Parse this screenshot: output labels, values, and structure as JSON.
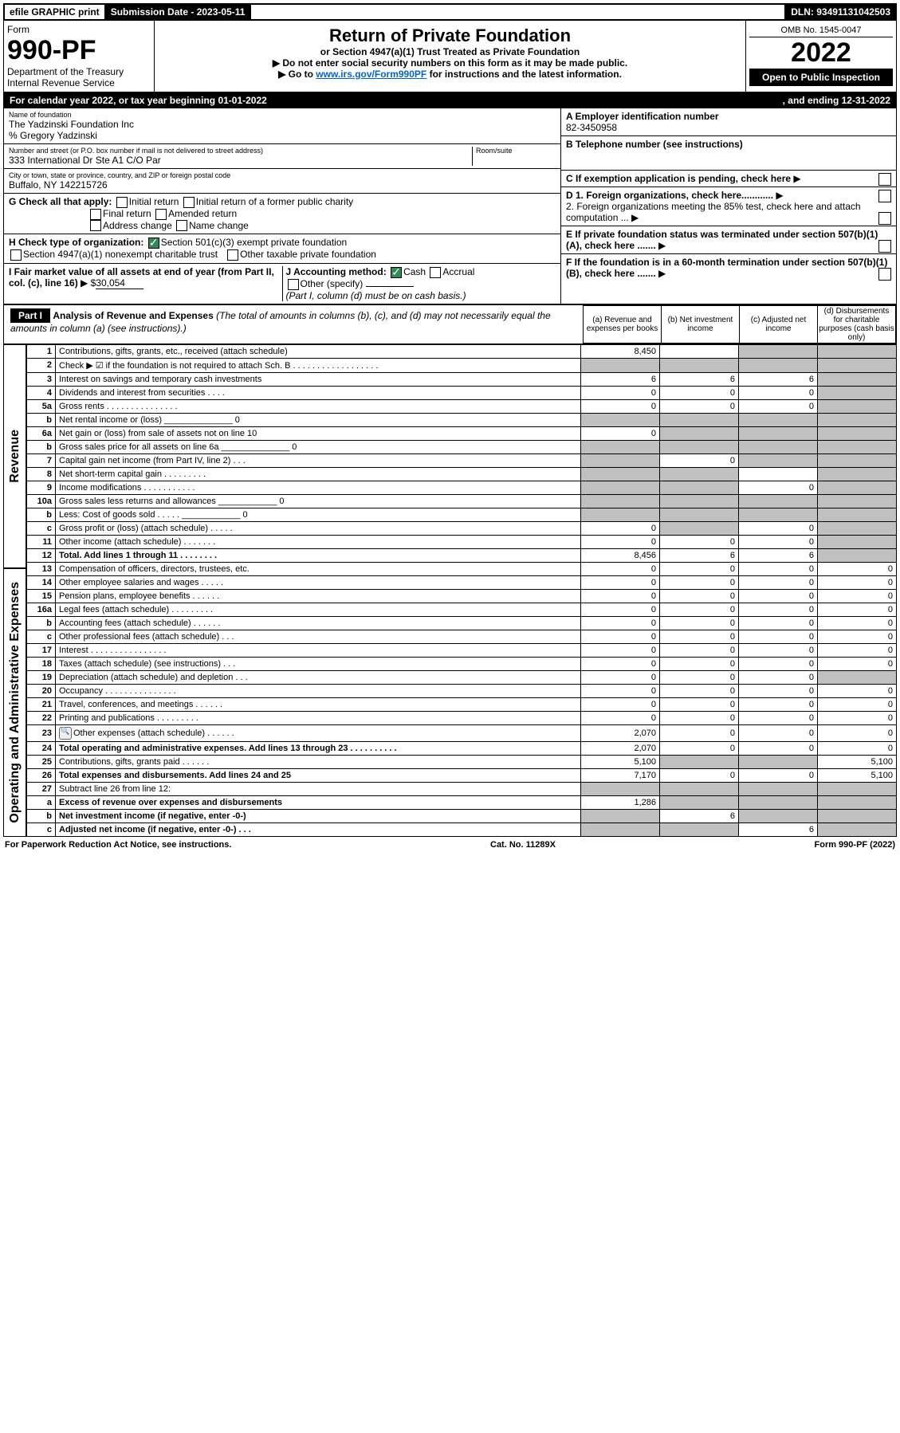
{
  "top_bar": {
    "efile": "efile GRAPHIC print",
    "subdate_label": "Submission Date - 2023-05-11",
    "dln": "DLN: 93491131042503"
  },
  "header": {
    "form_label": "Form",
    "form_no": "990-PF",
    "dept": "Department of the Treasury",
    "irs": "Internal Revenue Service",
    "title": "Return of Private Foundation",
    "subtitle": "or Section 4947(a)(1) Trust Treated as Private Foundation",
    "note1": "Do not enter social security numbers on this form as it may be made public.",
    "note2": "Go to ",
    "link": "www.irs.gov/Form990PF",
    "note2_after": " for instructions and the latest information.",
    "omb": "OMB No. 1545-0047",
    "year": "2022",
    "inspect": "Open to Public Inspection"
  },
  "cal": "For calendar year 2022, or tax year beginning 01-01-2022",
  "ending": ", and ending 12-31-2022",
  "name_label": "Name of foundation",
  "name": "The Yadzinski Foundation Inc",
  "name2": "% Gregory Yadzinski",
  "addr_label": "Number and street (or P.O. box number if mail is not delivered to street address)",
  "addr": "333 International Dr Ste A1 C/O Par",
  "room_label": "Room/suite",
  "city_label": "City or town, state or province, country, and ZIP or foreign postal code",
  "city": "Buffalo, NY 142215726",
  "A_label": "A Employer identification number",
  "A_val": "82-3450958",
  "B_label": "B Telephone number (see instructions)",
  "C_label": "C If exemption application is pending, check here",
  "D1": "D 1. Foreign organizations, check here............",
  "D2": "2. Foreign organizations meeting the 85% test, check here and attach computation ...",
  "E": "E If private foundation status was terminated under section 507(b)(1)(A), check here .......",
  "F": "F If the foundation is in a 60-month termination under section 507(b)(1)(B), check here .......",
  "G_label": "G Check all that apply:",
  "G_opts": [
    "Initial return",
    "Initial return of a former public charity",
    "Final return",
    "Amended return",
    "Address change",
    "Name change"
  ],
  "H_label": "H Check type of organization:",
  "H_opt1": "Section 501(c)(3) exempt private foundation",
  "H_opt2": "Section 4947(a)(1) nonexempt charitable trust",
  "H_opt3": "Other taxable private foundation",
  "I_label": "I Fair market value of all assets at end of year (from Part II, col. (c), line 16) ",
  "I_pref": "▶ $",
  "I_val": "30,054",
  "J_label": "J Accounting method:",
  "J_cash": "Cash",
  "J_accrual": "Accrual",
  "J_other": "Other (specify)",
  "J_note": "(Part I, column (d) must be on cash basis.)",
  "part1": {
    "label": "Part I",
    "title": "Analysis of Revenue and Expenses",
    "sub": "(The total of amounts in columns (b), (c), and (d) may not necessarily equal the amounts in column (a) (see instructions).)",
    "col_a": "(a) Revenue and expenses per books",
    "col_b": "(b) Net investment income",
    "col_c": "(c) Adjusted net income",
    "col_d": "(d) Disbursements for charitable purposes (cash basis only)"
  },
  "rot1": "Revenue",
  "rot2": "Operating and Administrative Expenses",
  "rows": [
    {
      "n": "1",
      "l": "Contributions, gifts, grants, etc., received (attach schedule)",
      "a": "8,450",
      "b": "",
      "c": "",
      "d": "",
      "g": [
        "",
        "",
        "g",
        "g"
      ]
    },
    {
      "n": "2",
      "l": "Check ▶ ☑ if the foundation is not required to attach Sch. B  . . . . . . . . . . . . . . . . . .",
      "a": "",
      "b": "",
      "c": "",
      "d": "",
      "g": [
        "g",
        "g",
        "g",
        "g"
      ]
    },
    {
      "n": "3",
      "l": "Interest on savings and temporary cash investments",
      "a": "6",
      "b": "6",
      "c": "6",
      "d": "",
      "g": [
        "",
        "",
        "",
        "g"
      ]
    },
    {
      "n": "4",
      "l": "Dividends and interest from securities . . . .",
      "a": "0",
      "b": "0",
      "c": "0",
      "d": "",
      "g": [
        "",
        "",
        "",
        "g"
      ]
    },
    {
      "n": "5a",
      "l": "Gross rents  . . . . . . . . . . . . . . .",
      "a": "0",
      "b": "0",
      "c": "0",
      "d": "",
      "g": [
        "",
        "",
        "",
        "g"
      ]
    },
    {
      "n": "b",
      "l": "Net rental income or (loss) ______________ 0",
      "a": "",
      "b": "",
      "c": "",
      "d": "",
      "g": [
        "g",
        "g",
        "g",
        "g"
      ]
    },
    {
      "n": "6a",
      "l": "Net gain or (loss) from sale of assets not on line 10",
      "a": "0",
      "b": "",
      "c": "",
      "d": "",
      "g": [
        "",
        "g",
        "g",
        "g"
      ]
    },
    {
      "n": "b",
      "l": "Gross sales price for all assets on line 6a ______________ 0",
      "a": "",
      "b": "",
      "c": "",
      "d": "",
      "g": [
        "g",
        "g",
        "g",
        "g"
      ]
    },
    {
      "n": "7",
      "l": "Capital gain net income (from Part IV, line 2) . . .",
      "a": "",
      "b": "0",
      "c": "",
      "d": "",
      "g": [
        "g",
        "",
        "g",
        "g"
      ]
    },
    {
      "n": "8",
      "l": "Net short-term capital gain . . . . . . . . .",
      "a": "",
      "b": "",
      "c": "",
      "d": "",
      "g": [
        "g",
        "g",
        "",
        "g"
      ]
    },
    {
      "n": "9",
      "l": "Income modifications . . . . . . . . . . .",
      "a": "",
      "b": "",
      "c": "0",
      "d": "",
      "g": [
        "g",
        "g",
        "",
        "g"
      ]
    },
    {
      "n": "10a",
      "l": "Gross sales less returns and allowances ____________ 0",
      "a": "",
      "b": "",
      "c": "",
      "d": "",
      "g": [
        "g",
        "g",
        "g",
        "g"
      ]
    },
    {
      "n": "b",
      "l": "Less: Cost of goods sold . . . . . ____________ 0",
      "a": "",
      "b": "",
      "c": "",
      "d": "",
      "g": [
        "g",
        "g",
        "g",
        "g"
      ]
    },
    {
      "n": "c",
      "l": "Gross profit or (loss) (attach schedule) . . . . .",
      "a": "0",
      "b": "",
      "c": "0",
      "d": "",
      "g": [
        "",
        "g",
        "",
        "g"
      ]
    },
    {
      "n": "11",
      "l": "Other income (attach schedule) . . . . . . .",
      "a": "0",
      "b": "0",
      "c": "0",
      "d": "",
      "g": [
        "",
        "",
        "",
        "g"
      ]
    },
    {
      "n": "12",
      "l": "Total. Add lines 1 through 11 . . . . . . . .",
      "a": "8,456",
      "b": "6",
      "c": "6",
      "d": "",
      "g": [
        "",
        "",
        "",
        "g"
      ],
      "bold": true
    },
    {
      "n": "13",
      "l": "Compensation of officers, directors, trustees, etc.",
      "a": "0",
      "b": "0",
      "c": "0",
      "d": "0",
      "g": [
        "",
        "",
        "",
        ""
      ]
    },
    {
      "n": "14",
      "l": "Other employee salaries and wages . . . . .",
      "a": "0",
      "b": "0",
      "c": "0",
      "d": "0",
      "g": [
        "",
        "",
        "",
        ""
      ]
    },
    {
      "n": "15",
      "l": "Pension plans, employee benefits . . . . . .",
      "a": "0",
      "b": "0",
      "c": "0",
      "d": "0",
      "g": [
        "",
        "",
        "",
        ""
      ]
    },
    {
      "n": "16a",
      "l": "Legal fees (attach schedule) . . . . . . . . .",
      "a": "0",
      "b": "0",
      "c": "0",
      "d": "0",
      "g": [
        "",
        "",
        "",
        ""
      ]
    },
    {
      "n": "b",
      "l": "Accounting fees (attach schedule) . . . . . .",
      "a": "0",
      "b": "0",
      "c": "0",
      "d": "0",
      "g": [
        "",
        "",
        "",
        ""
      ]
    },
    {
      "n": "c",
      "l": "Other professional fees (attach schedule) . . .",
      "a": "0",
      "b": "0",
      "c": "0",
      "d": "0",
      "g": [
        "",
        "",
        "",
        ""
      ]
    },
    {
      "n": "17",
      "l": "Interest . . . . . . . . . . . . . . . .",
      "a": "0",
      "b": "0",
      "c": "0",
      "d": "0",
      "g": [
        "",
        "",
        "",
        ""
      ]
    },
    {
      "n": "18",
      "l": "Taxes (attach schedule) (see instructions) . . .",
      "a": "0",
      "b": "0",
      "c": "0",
      "d": "0",
      "g": [
        "",
        "",
        "",
        ""
      ]
    },
    {
      "n": "19",
      "l": "Depreciation (attach schedule) and depletion . . .",
      "a": "0",
      "b": "0",
      "c": "0",
      "d": "",
      "g": [
        "",
        "",
        "",
        "g"
      ]
    },
    {
      "n": "20",
      "l": "Occupancy . . . . . . . . . . . . . . .",
      "a": "0",
      "b": "0",
      "c": "0",
      "d": "0",
      "g": [
        "",
        "",
        "",
        ""
      ]
    },
    {
      "n": "21",
      "l": "Travel, conferences, and meetings . . . . . .",
      "a": "0",
      "b": "0",
      "c": "0",
      "d": "0",
      "g": [
        "",
        "",
        "",
        ""
      ]
    },
    {
      "n": "22",
      "l": "Printing and publications . . . . . . . . .",
      "a": "0",
      "b": "0",
      "c": "0",
      "d": "0",
      "g": [
        "",
        "",
        "",
        ""
      ]
    },
    {
      "n": "23",
      "l": "Other expenses (attach schedule) . . . . . .",
      "a": "2,070",
      "b": "0",
      "c": "0",
      "d": "0",
      "g": [
        "",
        "",
        "",
        ""
      ],
      "icon": true
    },
    {
      "n": "24",
      "l": "Total operating and administrative expenses. Add lines 13 through 23 . . . . . . . . . .",
      "a": "2,070",
      "b": "0",
      "c": "0",
      "d": "0",
      "g": [
        "",
        "",
        "",
        ""
      ],
      "bold": true
    },
    {
      "n": "25",
      "l": "Contributions, gifts, grants paid . . . . . .",
      "a": "5,100",
      "b": "",
      "c": "",
      "d": "5,100",
      "g": [
        "",
        "g",
        "g",
        ""
      ]
    },
    {
      "n": "26",
      "l": "Total expenses and disbursements. Add lines 24 and 25",
      "a": "7,170",
      "b": "0",
      "c": "0",
      "d": "5,100",
      "g": [
        "",
        "",
        "",
        ""
      ],
      "bold": true
    },
    {
      "n": "27",
      "l": "Subtract line 26 from line 12:",
      "a": "",
      "b": "",
      "c": "",
      "d": "",
      "g": [
        "g",
        "g",
        "g",
        "g"
      ]
    },
    {
      "n": "a",
      "l": "Excess of revenue over expenses and disbursements",
      "a": "1,286",
      "b": "",
      "c": "",
      "d": "",
      "g": [
        "",
        "g",
        "g",
        "g"
      ],
      "bold": true
    },
    {
      "n": "b",
      "l": "Net investment income (if negative, enter -0-)",
      "a": "",
      "b": "6",
      "c": "",
      "d": "",
      "g": [
        "g",
        "",
        "g",
        "g"
      ],
      "bold": true
    },
    {
      "n": "c",
      "l": "Adjusted net income (if negative, enter -0-) . . .",
      "a": "",
      "b": "",
      "c": "6",
      "d": "",
      "g": [
        "g",
        "g",
        "",
        "g"
      ],
      "bold": true
    }
  ],
  "footer": {
    "left": "For Paperwork Reduction Act Notice, see instructions.",
    "mid": "Cat. No. 11289X",
    "right": "Form 990-PF (2022)"
  }
}
